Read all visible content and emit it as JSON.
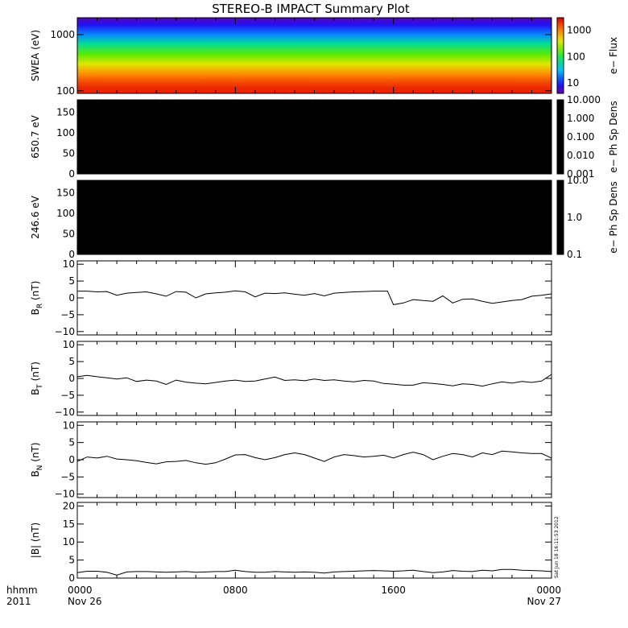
{
  "title": "STEREO-B IMPACT Summary Plot",
  "stamp": "Sat Jun 18 16:11:53 2012",
  "colors": {
    "line": "#000000",
    "frame": "#000000",
    "background": "#ffffff",
    "spectrogram_fill": "#000000"
  },
  "chart_data": [
    {
      "type": "heatmap",
      "id": "swea",
      "ylabel": "SWEA (eV)",
      "ylim": [
        90,
        2000
      ],
      "log_y": true,
      "yticks": [
        {
          "v": 100,
          "label": "100"
        },
        {
          "v": 1000,
          "label": "1000"
        }
      ],
      "colorbar": {
        "label": "e− Flux",
        "log": true,
        "range": [
          4,
          3000
        ],
        "ticks": [
          {
            "v": 10,
            "label": "10"
          },
          {
            "v": 100,
            "label": "100"
          },
          {
            "v": 1000,
            "label": "1000"
          }
        ]
      },
      "bands": [
        {
          "energy_eV": 2000,
          "flux": 5
        },
        {
          "energy_eV": 1500,
          "flux": 8
        },
        {
          "energy_eV": 1000,
          "flux": 20
        },
        {
          "energy_eV": 700,
          "flux": 60
        },
        {
          "energy_eV": 450,
          "flux": 150
        },
        {
          "energy_eV": 300,
          "flux": 400
        },
        {
          "energy_eV": 200,
          "flux": 900
        },
        {
          "energy_eV": 150,
          "flux": 1500
        },
        {
          "energy_eV": 110,
          "flux": 2200
        }
      ]
    },
    {
      "type": "heatmap",
      "id": "pad650",
      "ylabel": "650.7 eV",
      "ylim": [
        0,
        180
      ],
      "yticks": [
        {
          "v": 0,
          "label": "0"
        },
        {
          "v": 50,
          "label": "50"
        },
        {
          "v": 100,
          "label": "100"
        },
        {
          "v": 150,
          "label": "150"
        }
      ],
      "colorbar": {
        "label": "e− Ph Sp Dens",
        "log": true,
        "range": [
          0.001,
          10
        ],
        "ticks": [
          {
            "v": 0.001,
            "label": "0.001"
          },
          {
            "v": 0.01,
            "label": "0.010"
          },
          {
            "v": 0.1,
            "label": "0.100"
          },
          {
            "v": 1,
            "label": "1.000"
          },
          {
            "v": 10,
            "label": "10.000"
          }
        ]
      },
      "fill": "black"
    },
    {
      "type": "heatmap",
      "id": "pad246",
      "ylabel": "246.6 eV",
      "ylim": [
        0,
        180
      ],
      "yticks": [
        {
          "v": 0,
          "label": "0"
        },
        {
          "v": 50,
          "label": "50"
        },
        {
          "v": 100,
          "label": "100"
        },
        {
          "v": 150,
          "label": "150"
        }
      ],
      "colorbar": {
        "label": "e− Ph Sp Dens",
        "log": true,
        "range": [
          0.1,
          10
        ],
        "ticks": [
          {
            "v": 0.1,
            "label": "0.1"
          },
          {
            "v": 1,
            "label": "1.0"
          },
          {
            "v": 10,
            "label": "10.0"
          }
        ]
      },
      "fill": "black"
    },
    {
      "type": "line",
      "id": "br",
      "ylabel": "B",
      "ylabel_sub": "R",
      "ylabel_unit": " (nT)",
      "ylim": [
        -11,
        11
      ],
      "yticks": [
        {
          "v": -10,
          "label": "−10"
        },
        {
          "v": -5,
          "label": "−5"
        },
        {
          "v": 0,
          "label": "0"
        },
        {
          "v": 5,
          "label": "5"
        },
        {
          "v": 10,
          "label": "10"
        }
      ],
      "x": [
        0,
        0.5,
        1,
        1.5,
        2,
        2.5,
        3,
        3.5,
        4,
        4.5,
        5,
        5.5,
        6,
        6.5,
        7,
        7.5,
        8,
        8.5,
        9,
        9.5,
        10,
        10.5,
        11,
        11.5,
        12,
        12.5,
        13,
        13.5,
        14,
        14.5,
        15,
        15.5,
        15.7,
        16,
        16.5,
        17,
        17.5,
        18,
        18.5,
        19,
        19.5,
        20,
        20.5,
        21,
        21.5,
        22,
        22.5,
        23,
        23.5,
        24
      ],
      "y": [
        2,
        2,
        1.8,
        1.9,
        0.8,
        1.4,
        1.6,
        1.8,
        1.2,
        0.5,
        1.9,
        1.7,
        0,
        1.2,
        1.5,
        1.7,
        2.1,
        1.8,
        0.3,
        1.4,
        1.3,
        1.5,
        1.1,
        0.8,
        1.3,
        0.6,
        1.4,
        1.6,
        1.8,
        1.9,
        2,
        2,
        2,
        -2,
        -1.5,
        -0.5,
        -0.8,
        -1,
        0.6,
        -1.5,
        -0.4,
        -0.3,
        -1,
        -1.6,
        -1.2,
        -0.8,
        -0.5,
        0.5,
        0.8,
        1.2
      ]
    },
    {
      "type": "line",
      "id": "bt",
      "ylabel": "B",
      "ylabel_sub": "T",
      "ylabel_unit": " (nT)",
      "ylim": [
        -11,
        11
      ],
      "yticks": [
        {
          "v": -10,
          "label": "−10"
        },
        {
          "v": -5,
          "label": "−5"
        },
        {
          "v": 0,
          "label": "0"
        },
        {
          "v": 5,
          "label": "5"
        },
        {
          "v": 10,
          "label": "10"
        }
      ],
      "x": [
        0,
        0.5,
        1,
        1.5,
        2,
        2.5,
        3,
        3.5,
        4,
        4.5,
        5,
        5.5,
        6,
        6.5,
        7,
        7.5,
        8,
        8.5,
        9,
        9.5,
        10,
        10.5,
        11,
        11.5,
        12,
        12.5,
        13,
        13.5,
        14,
        14.5,
        15,
        15.5,
        16,
        16.5,
        17,
        17.5,
        18,
        18.5,
        19,
        19.5,
        20,
        20.5,
        21,
        21.5,
        22,
        22.5,
        23,
        23.5,
        24
      ],
      "y": [
        0.5,
        0.9,
        0.5,
        0.2,
        -0.2,
        0.2,
        -0.9,
        -0.5,
        -0.8,
        -1.8,
        -0.5,
        -1.1,
        -1.4,
        -1.6,
        -1.2,
        -0.8,
        -0.5,
        -0.9,
        -0.8,
        -0.2,
        0.4,
        -0.6,
        -0.4,
        -0.7,
        -0.2,
        -0.6,
        -0.4,
        -0.8,
        -1.0,
        -0.6,
        -0.8,
        -1.5,
        -1.7,
        -2.0,
        -2.0,
        -1.3,
        -1.5,
        -1.8,
        -2.2,
        -1.6,
        -1.8,
        -2.3,
        -1.6,
        -1.0,
        -1.4,
        -0.9,
        -1.2,
        -0.8,
        1.2
      ]
    },
    {
      "type": "line",
      "id": "bn",
      "ylabel": "B",
      "ylabel_sub": "N",
      "ylabel_unit": " (nT)",
      "ylim": [
        -11,
        11
      ],
      "yticks": [
        {
          "v": -10,
          "label": "−10"
        },
        {
          "v": -5,
          "label": "−5"
        },
        {
          "v": 0,
          "label": "0"
        },
        {
          "v": 5,
          "label": "5"
        },
        {
          "v": 10,
          "label": "10"
        }
      ],
      "x": [
        0,
        0.5,
        1,
        1.5,
        2,
        2.5,
        3,
        3.5,
        4,
        4.5,
        5,
        5.5,
        6,
        6.5,
        7,
        7.5,
        8,
        8.5,
        9,
        9.5,
        10,
        10.5,
        11,
        11.5,
        12,
        12.5,
        13,
        13.5,
        14,
        14.5,
        15,
        15.5,
        16,
        16.5,
        17,
        17.5,
        18,
        18.5,
        19,
        19.5,
        20,
        20.5,
        21,
        21.5,
        22,
        22.5,
        23,
        23.5,
        24
      ],
      "y": [
        -0.5,
        0.8,
        0.5,
        1.0,
        0.2,
        0.0,
        -0.3,
        -0.8,
        -1.2,
        -0.6,
        -0.5,
        -0.2,
        -0.9,
        -1.3,
        -0.9,
        0.2,
        1.4,
        1.5,
        0.6,
        0.0,
        0.6,
        1.5,
        2.0,
        1.5,
        0.5,
        -0.5,
        0.8,
        1.5,
        1.2,
        0.8,
        1.0,
        1.3,
        0.5,
        1.5,
        2.2,
        1.5,
        0.0,
        1.0,
        1.8,
        1.5,
        0.8,
        2.0,
        1.5,
        2.5,
        2.3,
        2.0,
        1.8,
        1.8,
        0.5
      ]
    },
    {
      "type": "line",
      "id": "bmag",
      "ylabel": "|B| (nT)",
      "ylim": [
        0,
        21
      ],
      "yticks": [
        {
          "v": 0,
          "label": "0"
        },
        {
          "v": 5,
          "label": "5"
        },
        {
          "v": 10,
          "label": "10"
        },
        {
          "v": 15,
          "label": "15"
        },
        {
          "v": 20,
          "label": "20"
        }
      ],
      "x": [
        0,
        0.5,
        1,
        1.5,
        2,
        2.5,
        3,
        3.5,
        4,
        4.5,
        5,
        5.5,
        6,
        6.5,
        7,
        7.5,
        8,
        8.5,
        9,
        9.5,
        10,
        10.5,
        11,
        11.5,
        12,
        12.5,
        13,
        13.5,
        14,
        14.5,
        15,
        15.5,
        16,
        16.5,
        17,
        17.5,
        18,
        18.5,
        19,
        19.5,
        20,
        20.5,
        21,
        21.5,
        22,
        22.5,
        23,
        23.5,
        24
      ],
      "y": [
        1.5,
        1.9,
        1.9,
        1.6,
        0.8,
        1.7,
        1.8,
        1.8,
        1.7,
        1.6,
        1.7,
        1.8,
        1.6,
        1.7,
        1.8,
        1.8,
        2.2,
        1.8,
        1.6,
        1.6,
        1.8,
        1.7,
        1.6,
        1.7,
        1.6,
        1.4,
        1.7,
        1.8,
        1.9,
        2.0,
        2.1,
        2.0,
        1.9,
        2.0,
        2.2,
        1.8,
        1.5,
        1.7,
        2.1,
        1.9,
        1.8,
        2.2,
        2.0,
        2.4,
        2.4,
        2.2,
        2.1,
        2.0,
        1.8
      ]
    }
  ],
  "xaxis": {
    "range_hours": [
      0,
      24
    ],
    "ticks": [
      {
        "h": 0,
        "label": "0000",
        "label2": "Nov 26"
      },
      {
        "h": 8,
        "label": "0800",
        "label2": ""
      },
      {
        "h": 16,
        "label": "1600",
        "label2": ""
      },
      {
        "h": 24,
        "label": "0000",
        "label2": "Nov 27"
      }
    ],
    "corner_label": "hhmm",
    "corner_label2": "2011"
  }
}
